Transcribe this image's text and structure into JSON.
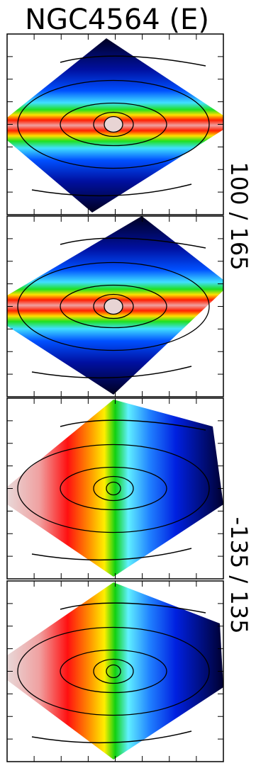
{
  "title": "NGC4564 (E)",
  "panel_labels": [
    "100 / 165",
    "-135 / 135"
  ]
}
